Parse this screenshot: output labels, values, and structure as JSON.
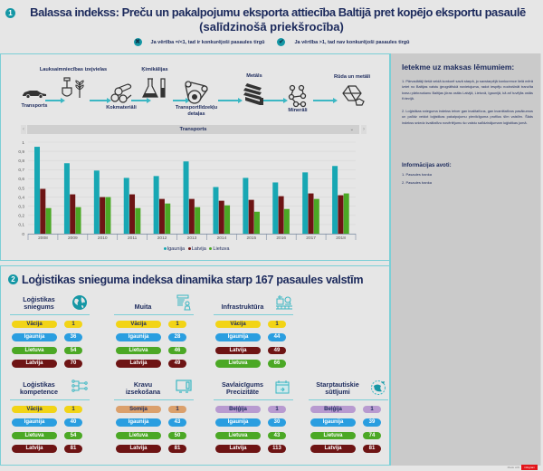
{
  "header": {
    "section_number": "1",
    "title_line1": "Balassa indekss: Preču un pakalpojumu eksporta attiecība Baltijā pret kopējo eksportu pasaulē",
    "title_line2": "(salīdzinošā priekšrocība)",
    "legend": [
      {
        "icon": "x-circle-icon",
        "glyph": "✖",
        "text": "Ja vērtība =/<1, tad ir konkurējoši pasaules tirgū"
      },
      {
        "icon": "check-circle-icon",
        "glyph": "✔",
        "text": "Ja vērtība >1, tad nav konkurējoši pasaules tirgū"
      }
    ]
  },
  "flow": {
    "nodes": [
      {
        "label": "Transports",
        "icon": "car-icon"
      },
      {
        "label": "Lauksaimniecības izejvielas",
        "icon": "shovel-plant-icon"
      },
      {
        "label": "Kokmateriāli",
        "icon": "logs-icon"
      },
      {
        "label": "Ķimikālijas",
        "icon": "flask-icon"
      },
      {
        "label": "Transportlīdzekļu detaļas",
        "icon": "gear-belt-icon"
      },
      {
        "label": "Metāls",
        "icon": "metal-bars-icon"
      },
      {
        "label": "Minerāli",
        "icon": "molecule-icon"
      },
      {
        "label": "Rūda un metāli",
        "icon": "ore-icon"
      }
    ]
  },
  "selector": {
    "value": "Transports",
    "prev": "‹",
    "next": "›",
    "caret": "⌄"
  },
  "chart_data": {
    "type": "bar",
    "title": "Transports",
    "categories": [
      "2008",
      "2009",
      "2010",
      "2011",
      "2012",
      "2013",
      "2014",
      "2015",
      "2016",
      "2017",
      "2018"
    ],
    "series": [
      {
        "name": "Igaunija",
        "color": "#17a7b3",
        "values": [
          0.95,
          0.77,
          0.69,
          0.61,
          0.63,
          0.79,
          0.51,
          0.61,
          0.56,
          0.67,
          0.74
        ]
      },
      {
        "name": "Latvija",
        "color": "#6e1414",
        "values": [
          0.49,
          0.43,
          0.4,
          0.43,
          0.38,
          0.38,
          0.36,
          0.37,
          0.41,
          0.44,
          0.42
        ]
      },
      {
        "name": "Lietuva",
        "color": "#4ba825",
        "values": [
          0.28,
          0.29,
          0.4,
          0.28,
          0.33,
          0.29,
          0.31,
          0.24,
          0.27,
          0.38,
          0.44
        ]
      }
    ],
    "yticks": [
      "0",
      "0,1",
      "0,2",
      "0,3",
      "0,4",
      "0,5",
      "0,6",
      "0,7",
      "0,8",
      "0,9",
      "1"
    ],
    "ylim": [
      0,
      1
    ],
    "grid": true,
    "legend_position": "bottom"
  },
  "sidebar": {
    "heading": "Ietekme uz maksas lēmumiem:",
    "paragraphs": [
      "1. Pārvadātāji tiešā veidā konkurē savā starpā, jo savstarpējā konkurence lielā mērā izriet no Baltijas valstu ģeogrāfiskā novietojuma, radot iespēju nodrošināt tranzīta kravu pārkraušanu Baltijas jūras ostās Latvijā, Lietuvā, Igaunijā, kā arī tuvējās ostās Krievijā.",
      "2. Loģistikas snieguma indekss ietver gan kvalitatīvus, gan kvantitatīvus pasākumus un palīdz veidot loģistikas pakalpojumu pievilcīguma profilus šīm valstīm. Šāds indekss sniedz kvalitatīvu novērtējumu šo valstu salīdzinājumam loģistikas jomā."
    ],
    "sources_heading": "Informācijas avoti:",
    "sources": [
      "1. Pasaules banka",
      "2. Pasaules banka"
    ]
  },
  "section2": {
    "section_number": "2",
    "title": "Loģistikas snieguma indeksa dinamika starp 167 pasaules valstīm",
    "cards": [
      {
        "title": "Loģistikas sniegums",
        "icon": "globe-icon",
        "rows": [
          {
            "country": "Vācija",
            "rank": "1",
            "color": "yellow"
          },
          {
            "country": "Igaunija",
            "rank": "36",
            "color": "blue"
          },
          {
            "country": "Lietuva",
            "rank": "54",
            "color": "green"
          },
          {
            "country": "Latvija",
            "rank": "70",
            "color": "maroon"
          }
        ]
      },
      {
        "title": "Muita",
        "icon": "customs-document-icon",
        "rows": [
          {
            "country": "Vācija",
            "rank": "1",
            "color": "yellow"
          },
          {
            "country": "Igaunija",
            "rank": "28",
            "color": "blue"
          },
          {
            "country": "Lietuva",
            "rank": "46",
            "color": "green"
          },
          {
            "country": "Latvija",
            "rank": "49",
            "color": "maroon"
          }
        ]
      },
      {
        "title": "Infrastruktūra",
        "icon": "infrastructure-icon",
        "rows": [
          {
            "country": "Vācija",
            "rank": "1",
            "color": "yellow"
          },
          {
            "country": "Igaunija",
            "rank": "44",
            "color": "blue"
          },
          {
            "country": "Latvija",
            "rank": "49",
            "color": "maroon"
          },
          {
            "country": "Lietuva",
            "rank": "66",
            "color": "green"
          }
        ]
      },
      {
        "title": "Loģistikas kompetence",
        "icon": "network-icon",
        "rows": [
          {
            "country": "Vācija",
            "rank": "1",
            "color": "yellow"
          },
          {
            "country": "Igaunija",
            "rank": "40",
            "color": "blue"
          },
          {
            "country": "Lietuva",
            "rank": "54",
            "color": "green"
          },
          {
            "country": "Latvija",
            "rank": "81",
            "color": "maroon"
          }
        ]
      },
      {
        "title": "Kravu izsekošana",
        "icon": "monitor-icon",
        "rows": [
          {
            "country": "Somija",
            "rank": "1",
            "color": "orange"
          },
          {
            "country": "Igaunija",
            "rank": "43",
            "color": "blue"
          },
          {
            "country": "Lietuva",
            "rank": "50",
            "color": "green"
          },
          {
            "country": "Latvija",
            "rank": "81",
            "color": "maroon"
          }
        ]
      },
      {
        "title": "Savlaicīgums Precizitāte",
        "icon": "calendar-icon",
        "rows": [
          {
            "country": "Beļģija",
            "rank": "1",
            "color": "purple"
          },
          {
            "country": "Igaunija",
            "rank": "30",
            "color": "blue"
          },
          {
            "country": "Lietuva",
            "rank": "43",
            "color": "green"
          },
          {
            "country": "Latvija",
            "rank": "113",
            "color": "maroon"
          }
        ]
      },
      {
        "title": "Starptautiskie sūtījumi",
        "icon": "globe-plane-icon",
        "rows": [
          {
            "country": "Beļģija",
            "rank": "1",
            "color": "purple"
          },
          {
            "country": "Igaunija",
            "rank": "39",
            "color": "blue"
          },
          {
            "country": "Lietuva",
            "rank": "74",
            "color": "green"
          },
          {
            "country": "Latvija",
            "rank": "81",
            "color": "maroon"
          }
        ]
      }
    ]
  },
  "footer": {
    "made_with": "Made with",
    "brand": "infogram"
  }
}
